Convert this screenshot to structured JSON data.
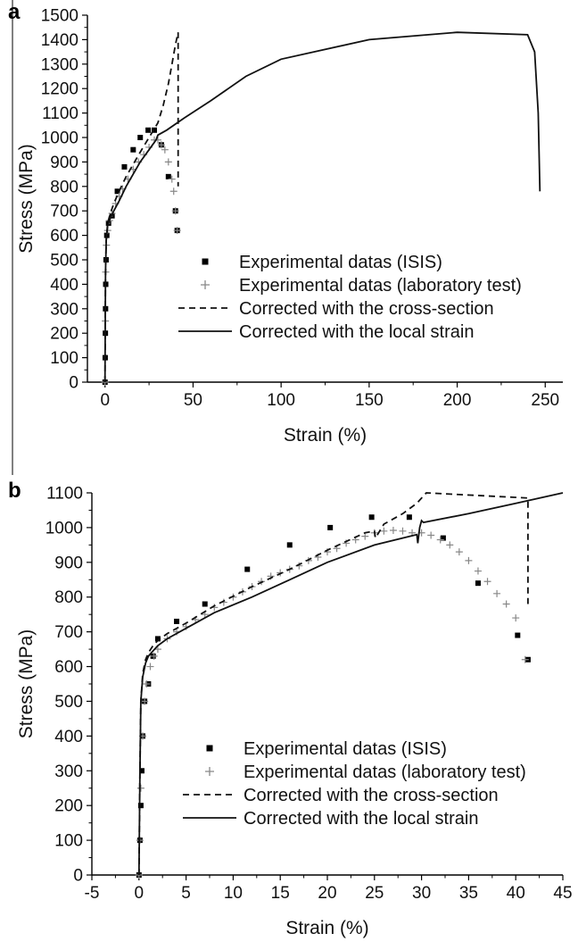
{
  "chart_data": [
    {
      "panel": "a",
      "type": "scatter",
      "xlabel": "Strain (%)",
      "ylabel": "Stress (MPa)",
      "xlim": [
        -10,
        260
      ],
      "ylim": [
        0,
        1500
      ],
      "xticks": [
        0,
        50,
        100,
        150,
        200,
        250
      ],
      "yticks": [
        0,
        100,
        200,
        300,
        400,
        500,
        600,
        700,
        800,
        900,
        1000,
        1100,
        1200,
        1300,
        1400,
        1500
      ],
      "legend_position": "center-right",
      "series": [
        {
          "name": "Experimental datas (ISIS)",
          "style": "square-marker",
          "x": [
            0,
            0.1,
            0.2,
            0.3,
            0.4,
            0.6,
            1,
            2,
            4,
            7,
            11,
            16,
            20,
            24.5,
            28,
            32,
            36,
            40,
            41
          ],
          "y": [
            0,
            100,
            200,
            300,
            400,
            500,
            600,
            650,
            680,
            780,
            880,
            950,
            1000,
            1030,
            1030,
            970,
            840,
            700,
            620
          ]
        },
        {
          "name": "Experimental datas (laboratory test)",
          "style": "plus-marker",
          "x": [
            0,
            0.2,
            0.4,
            0.8,
            1.5,
            2.5,
            4,
            6,
            8,
            10,
            13,
            16,
            19,
            22,
            25,
            28,
            30,
            32,
            34,
            36,
            38,
            39,
            40,
            41
          ],
          "y": [
            0,
            250,
            450,
            560,
            620,
            660,
            690,
            730,
            760,
            790,
            830,
            870,
            900,
            930,
            960,
            990,
            990,
            970,
            950,
            900,
            830,
            780,
            700,
            620
          ]
        },
        {
          "name": "Corrected with the cross-section",
          "style": "dashed",
          "x": [
            0,
            0.3,
            0.7,
            1.5,
            3,
            5,
            8,
            12,
            16,
            20,
            25,
            30,
            33,
            36,
            38,
            40,
            41.5,
            41.5
          ],
          "y": [
            0,
            450,
            580,
            650,
            690,
            730,
            780,
            840,
            890,
            940,
            1000,
            1060,
            1130,
            1220,
            1300,
            1380,
            1430,
            800
          ]
        },
        {
          "name": "Corrected with the local strain",
          "style": "solid",
          "x": [
            0,
            0.3,
            0.7,
            1.5,
            3,
            5,
            8,
            12,
            16,
            20,
            25,
            29,
            30,
            35,
            45,
            60,
            80,
            100,
            150,
            200,
            240,
            244,
            246,
            247
          ],
          "y": [
            0,
            450,
            580,
            640,
            670,
            700,
            740,
            800,
            850,
            900,
            950,
            990,
            1010,
            1030,
            1080,
            1150,
            1250,
            1320,
            1400,
            1430,
            1420,
            1350,
            1100,
            780
          ]
        }
      ]
    },
    {
      "panel": "b",
      "type": "scatter",
      "xlabel": "Strain (%)",
      "ylabel": "Stress (MPa)",
      "xlim": [
        -5,
        45
      ],
      "ylim": [
        0,
        1100
      ],
      "xticks": [
        -5,
        0,
        5,
        10,
        15,
        20,
        25,
        30,
        35,
        40,
        45
      ],
      "yticks": [
        0,
        100,
        200,
        300,
        400,
        500,
        600,
        700,
        800,
        900,
        1000,
        1100
      ],
      "legend_position": "center-right",
      "series": [
        {
          "name": "Experimental datas (ISIS)",
          "style": "square-marker",
          "x": [
            0,
            0.1,
            0.2,
            0.3,
            0.4,
            0.6,
            1,
            1.5,
            2,
            4,
            7,
            11.5,
            16,
            20.3,
            24.7,
            28.7,
            32.3,
            36,
            40.2,
            41.3
          ],
          "y": [
            0,
            100,
            200,
            300,
            400,
            500,
            550,
            630,
            680,
            730,
            780,
            880,
            950,
            1000,
            1030,
            1030,
            970,
            840,
            690,
            620
          ]
        },
        {
          "name": "Experimental datas (laboratory test)",
          "style": "plus-marker",
          "x": [
            0,
            0.1,
            0.2,
            0.4,
            0.6,
            0.8,
            1.2,
            1.6,
            2,
            3,
            4,
            5,
            6,
            7,
            8,
            9,
            10,
            11,
            12,
            13,
            14,
            15,
            16,
            17,
            18,
            19,
            20,
            21,
            22,
            23,
            24,
            25,
            26,
            27,
            28,
            29,
            30,
            31,
            32,
            33,
            34,
            35,
            36,
            37,
            38,
            39,
            40,
            41
          ],
          "y": [
            0,
            100,
            250,
            400,
            500,
            550,
            600,
            630,
            650,
            680,
            700,
            715,
            735,
            750,
            770,
            785,
            800,
            815,
            830,
            845,
            860,
            870,
            880,
            890,
            905,
            915,
            930,
            940,
            955,
            965,
            975,
            985,
            990,
            992,
            990,
            985,
            985,
            978,
            965,
            950,
            930,
            905,
            875,
            845,
            810,
            780,
            740,
            620
          ]
        },
        {
          "name": "Corrected with the cross-section",
          "style": "dashed",
          "x": [
            0,
            0.1,
            0.2,
            0.4,
            0.7,
            1,
            1.5,
            2,
            3,
            5,
            8,
            12,
            16,
            20,
            24,
            25,
            25.1,
            26,
            28,
            29.5,
            30.5,
            41.3,
            41.3
          ],
          "y": [
            0,
            300,
            500,
            580,
            620,
            640,
            660,
            675,
            695,
            725,
            775,
            830,
            880,
            935,
            985,
            990,
            970,
            1010,
            1040,
            1070,
            1100,
            1085,
            780
          ]
        },
        {
          "name": "Corrected with the local strain",
          "style": "solid",
          "x": [
            0,
            0.1,
            0.2,
            0.4,
            0.7,
            1,
            1.5,
            2,
            3,
            5,
            8,
            12,
            16,
            20,
            25,
            29.5,
            29.6,
            29.8,
            30,
            30.2,
            35,
            40,
            45
          ],
          "y": [
            0,
            300,
            500,
            570,
            610,
            630,
            645,
            660,
            680,
            710,
            755,
            800,
            850,
            900,
            950,
            980,
            955,
            1000,
            1020,
            1015,
            1040,
            1070,
            1100
          ]
        }
      ]
    }
  ]
}
